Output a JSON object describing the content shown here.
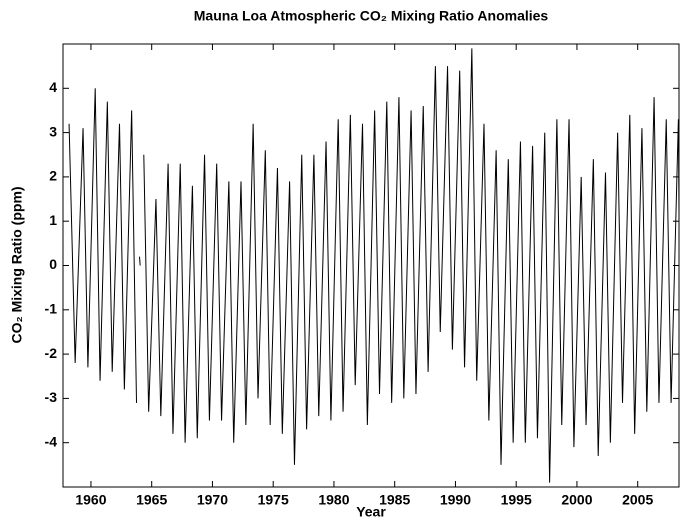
{
  "chart_data": {
    "type": "line",
    "title": "Mauna Loa Atmospheric CO₂ Mixing Ratio Anomalies",
    "xlabel": "Year",
    "ylabel": "CO₂ Mixing Ratio (ppm)",
    "color": "#000000",
    "xlim": [
      1957.7,
      2008.4
    ],
    "xticks": [
      1960,
      1965,
      1970,
      1975,
      1980,
      1985,
      1990,
      1995,
      2000,
      2005
    ],
    "ylim": [
      -5,
      5
    ],
    "yticks": [
      -4,
      -3,
      -2,
      -1,
      0,
      1,
      2,
      3,
      4
    ],
    "x": [
      1958.2,
      1958.7,
      1959.35,
      1959.75,
      1960.35,
      1960.75,
      1961.35,
      1961.75,
      1962.35,
      1962.75,
      1963.35,
      1963.75,
      1963.9,
      1964.0,
      1964.05,
      1964.15,
      1964.35,
      1964.75,
      1965.35,
      1965.75,
      1966.35,
      1966.75,
      1967.35,
      1967.75,
      1968.35,
      1968.75,
      1969.35,
      1969.75,
      1970.35,
      1970.75,
      1971.35,
      1971.75,
      1972.35,
      1972.75,
      1973.35,
      1973.75,
      1974.35,
      1974.75,
      1975.35,
      1975.75,
      1976.35,
      1976.75,
      1977.35,
      1977.75,
      1978.35,
      1978.75,
      1979.35,
      1979.75,
      1980.35,
      1980.75,
      1981.35,
      1981.75,
      1982.35,
      1982.75,
      1983.35,
      1983.75,
      1984.35,
      1984.75,
      1985.35,
      1985.75,
      1986.35,
      1986.75,
      1987.35,
      1987.75,
      1988.35,
      1988.75,
      1989.35,
      1989.75,
      1990.35,
      1990.75,
      1991.35,
      1991.75,
      1992.35,
      1992.75,
      1993.35,
      1993.75,
      1994.35,
      1994.75,
      1995.35,
      1995.75,
      1996.35,
      1996.75,
      1997.35,
      1997.75,
      1998.35,
      1998.75,
      1999.35,
      1999.75,
      2000.35,
      2000.75,
      2001.35,
      2001.75,
      2002.35,
      2002.75,
      2003.35,
      2003.75,
      2004.35,
      2004.75,
      2005.35,
      2005.75,
      2006.35,
      2006.75,
      2007.35,
      2007.75,
      2008.35,
      2008.4
    ],
    "values": [
      3.2,
      -2.2,
      3.1,
      -2.3,
      4.0,
      -2.6,
      3.7,
      -2.4,
      3.2,
      -2.8,
      3.5,
      -3.1,
      null,
      0.2,
      0.0,
      null,
      2.5,
      -3.3,
      1.5,
      -3.4,
      2.3,
      -3.8,
      2.3,
      -4.0,
      1.8,
      -3.9,
      2.5,
      -3.5,
      2.3,
      -3.5,
      1.9,
      -4.0,
      1.9,
      -3.6,
      3.2,
      -3.0,
      2.6,
      -3.6,
      2.2,
      -3.8,
      1.9,
      -4.5,
      2.5,
      -3.7,
      2.5,
      -3.4,
      2.8,
      -3.5,
      3.3,
      -3.3,
      3.4,
      -2.7,
      3.2,
      -3.6,
      3.5,
      -2.9,
      3.7,
      -3.1,
      3.8,
      -3.0,
      3.5,
      -2.9,
      3.6,
      -2.4,
      4.5,
      -1.5,
      4.5,
      -1.9,
      4.4,
      -2.3,
      4.9,
      -2.6,
      3.2,
      -3.5,
      2.6,
      -4.5,
      2.4,
      -4.0,
      2.8,
      -4.0,
      2.7,
      -3.9,
      3.0,
      -4.9,
      3.3,
      -3.6,
      3.3,
      -4.1,
      2.0,
      -3.6,
      2.4,
      -4.3,
      2.1,
      -4.0,
      3.0,
      -3.1,
      3.4,
      -3.8,
      3.1,
      -3.3,
      3.8,
      -3.1,
      3.3,
      -3.1,
      3.3,
      1.2
    ]
  }
}
